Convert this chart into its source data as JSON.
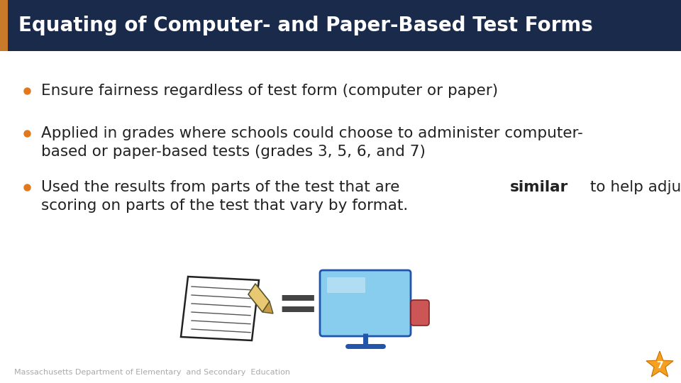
{
  "title": "Equating of Computer- and Paper-Based Test Forms",
  "title_bg_color": "#1a2a4a",
  "title_text_color": "#ffffff",
  "accent_bar_color": "#c87a2a",
  "bg_color": "#ffffff",
  "bullet_color": "#e07820",
  "text_color": "#222222",
  "bullet1": "Ensure fairness regardless of test form (computer or paper)",
  "bullet2_line1": "Applied in grades where schools could choose to administer computer-",
  "bullet2_line2": "based or paper-based tests (grades 3, 5, 6, and 7)",
  "bullet3_pre": "Used the results from parts of the test that are ",
  "bullet3_bold": "similar",
  "bullet3_post": " to help adjust the",
  "bullet3_line2": "scoring on parts of the test that vary by format.",
  "footer_text": "Massachusetts Department of Elementary  and Secondary  Education",
  "footer_color": "#aaaaaa",
  "page_number": "7",
  "star_color": "#f5a020",
  "star_edge_color": "#c87000",
  "title_fontsize": 20,
  "bullet_fontsize": 15.5
}
